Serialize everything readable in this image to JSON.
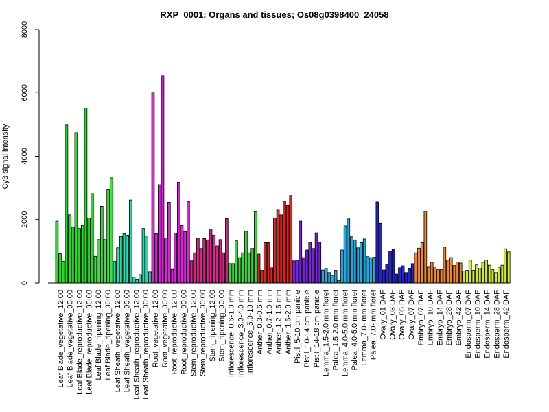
{
  "chart_data": {
    "type": "bar",
    "title": "RXP_0001: Organs and tissues; Os08g0398400_24058",
    "xlabel": "",
    "ylabel": "Cy3 signal intensity",
    "ylim": [
      0,
      8000
    ],
    "yticks": [
      0,
      2000,
      4000,
      6000,
      8000
    ],
    "grid": false,
    "legend": "none",
    "category_labels": [
      "Leaf Blade_vegetative_12:00",
      "Leaf Blade_vegetative_00:00",
      "Leaf Blade_reproductive_12:00",
      "Leaf Blade_reproductive_00:00",
      "Leaf Blade_ripening_12:00",
      "Leaf Blade_ripening_00:00",
      "Leaf Sheath_vegetative_12:00",
      "Leaf Sheath_vegetative_00:00",
      "Leaf Sheath_reproductive_12:00",
      "Leaf Sheath_reproductive_00:00",
      "Root_vegetative_12:00",
      "Root_vegetative_00:00",
      "Root_reproductive_12:00",
      "Root_reproductive_00:00",
      "Stem_reproductive_12:00",
      "Stem_reproductive_00:00",
      "Stem_ripening_12:00",
      "Stem_ripening_00:00",
      "Inflorescence_0.6-1.0 mm",
      "Inflorescence_3.0-4.0 mm",
      "Inflorescence_5.0-10 mm",
      "Anther_0.3-0.6 mm",
      "Anther_0.7-1.0 mm",
      "Anther_1.2-1.5 mm",
      "Anther_1.6-2.0 mm",
      "Pistil_5-10 cm panicle",
      "Pistil_10-14 cm panicle",
      "Pistil_14-18 cm panicle",
      "Lemma_1.5-2.0 mm floret",
      "Palea_1.5-2.0 mm floret",
      "Lemma_4.0-5.0 mm floret",
      "Palea_4.0-5.0 mm floret",
      "Lemma_7.0- mm floret",
      "Palea_7.0- mm floret",
      "Ovary_01 DAF",
      "Ovary_03 DAF",
      "Ovary_05 DAF",
      "Ovary_07 DAF",
      "Embryo_07 DAF",
      "Embryo_10 DAF",
      "Embryo_14 DAF",
      "Embryo_28 DAF",
      "Embryo_42 DAF",
      "Endosperm_07 DAF",
      "Endosperm_10 DAF",
      "Endosperm_14 DAF",
      "Endosperm_28 DAF",
      "Endosperm_42 DAF"
    ],
    "groups": [
      {
        "color": "#22dd22",
        "values": [
          1950,
          920,
          680
        ]
      },
      {
        "color": "#22dd22",
        "values": [
          4990,
          2150,
          1760
        ]
      },
      {
        "color": "#22dd22",
        "values": [
          4750,
          1720,
          1820
        ]
      },
      {
        "color": "#22dd22",
        "values": [
          5520,
          2050,
          2820
        ]
      },
      {
        "color": "#44dd44",
        "values": [
          840,
          1370,
          2420
        ]
      },
      {
        "color": "#44dd44",
        "values": [
          1370,
          2960,
          3320
        ]
      },
      {
        "color": "#22ddaa",
        "values": [
          680,
          1110,
          1470
        ]
      },
      {
        "color": "#22ddaa",
        "values": [
          1550,
          1510,
          2620
        ]
      },
      {
        "color": "#22ddaa",
        "values": [
          180,
          100,
          260
        ]
      },
      {
        "color": "#22ddaa",
        "values": [
          1720,
          1480,
          350
        ]
      },
      {
        "color": "#dd22dd",
        "values": [
          6010,
          1550,
          3100
        ]
      },
      {
        "color": "#dd22dd",
        "values": [
          6550,
          1420,
          2550
        ]
      },
      {
        "color": "#dd22dd",
        "values": [
          430,
          1570,
          3180
        ]
      },
      {
        "color": "#dd22dd",
        "values": [
          1810,
          1620,
          2570
        ]
      },
      {
        "color": "#dd2288",
        "values": [
          700,
          950,
          1410
        ]
      },
      {
        "color": "#dd2288",
        "values": [
          1090,
          1400,
          1360
        ]
      },
      {
        "color": "#dd2288",
        "values": [
          1700,
          1510,
          1170
        ]
      },
      {
        "color": "#dd2288",
        "values": [
          1370,
          950,
          2030
        ]
      },
      {
        "color": "#33dd33",
        "values": [
          610,
          610,
          1330
        ]
      },
      {
        "color": "#33dd33",
        "values": [
          800,
          950,
          1630
        ]
      },
      {
        "color": "#33dd33",
        "values": [
          950,
          1090,
          2250
        ]
      },
      {
        "color": "#dd2222",
        "values": [
          910,
          400
        ]
      },
      {
        "color": "#dd2222",
        "values": [
          1270,
          1270,
          480
        ]
      },
      {
        "color": "#dd2222",
        "values": [
          2050,
          2300,
          2150
        ]
      },
      {
        "color": "#dd2222",
        "values": [
          2580,
          2440,
          2760
        ]
      },
      {
        "color": "#7722dd",
        "values": [
          700,
          720,
          1950
        ]
      },
      {
        "color": "#7722dd",
        "values": [
          800,
          1040,
          1280
        ]
      },
      {
        "color": "#7722dd",
        "values": [
          1090,
          1580,
          1280
        ]
      },
      {
        "color": "#22aadd",
        "values": [
          410,
          460,
          330
        ]
      },
      {
        "color": "#22aadd",
        "values": [
          240,
          400,
          80
        ]
      },
      {
        "color": "#22aadd",
        "values": [
          1040,
          1800,
          2020
        ]
      },
      {
        "color": "#22aadd",
        "values": [
          1460,
          1350,
          1110
        ]
      },
      {
        "color": "#22aadd",
        "values": [
          1270,
          1390,
          830
        ]
      },
      {
        "color": "#22aadd",
        "values": [
          800,
          810
        ]
      },
      {
        "color": "#2222dd",
        "values": [
          2560,
          1880,
          410
        ]
      },
      {
        "color": "#2222dd",
        "values": [
          590,
          1000,
          1060
        ]
      },
      {
        "color": "#2222dd",
        "values": [
          280,
          480,
          540
        ]
      },
      {
        "color": "#2222dd",
        "values": [
          330,
          450,
          610
        ]
      },
      {
        "color": "#ee8822",
        "values": [
          950,
          1100,
          1270
        ]
      },
      {
        "color": "#ee8822",
        "values": [
          2260,
          500,
          650
        ]
      },
      {
        "color": "#ee8822",
        "values": [
          480,
          420,
          420
        ]
      },
      {
        "color": "#ee8822",
        "values": [
          1130,
          720,
          800
        ]
      },
      {
        "color": "#ee8822",
        "values": [
          550,
          660,
          630
        ]
      },
      {
        "color": "#ccee22",
        "values": [
          380,
          400,
          720
        ]
      },
      {
        "color": "#ccee22",
        "values": [
          400,
          570,
          460
        ]
      },
      {
        "color": "#ccee22",
        "values": [
          650,
          720,
          560
        ]
      },
      {
        "color": "#ccee22",
        "values": [
          420,
          330,
          480
        ]
      },
      {
        "color": "#ccee22",
        "values": [
          560,
          1080,
          980
        ]
      }
    ]
  }
}
